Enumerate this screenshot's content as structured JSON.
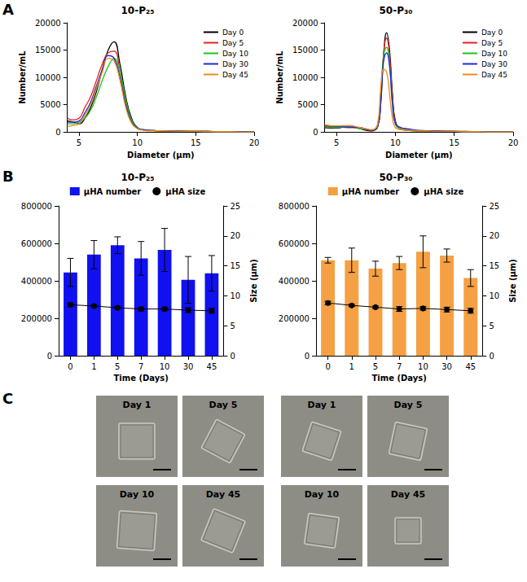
{
  "chart_data": [
    {
      "panel": "A",
      "type": "line",
      "title": "10-P₂₅",
      "x_label": "Diameter (μm)",
      "y_label": "Number/mL",
      "x": [
        4,
        4.5,
        5,
        5.5,
        6,
        6.5,
        7,
        7.5,
        8,
        8.5,
        9,
        9.5,
        10,
        10.5,
        11,
        12,
        13,
        14,
        15,
        16,
        17,
        18,
        19,
        20
      ],
      "xlim": [
        4,
        20
      ],
      "xticks": [
        5,
        10,
        15,
        20
      ],
      "ylim": [
        0,
        20000
      ],
      "yticks": [
        0,
        5000,
        10000,
        15000,
        20000
      ],
      "grid": false,
      "legend": "upper right",
      "line_style": "solid",
      "series": [
        {
          "name": "Day 0",
          "color": "#000000",
          "values": [
            2000,
            1800,
            1500,
            2500,
            4500,
            7500,
            11500,
            15000,
            16500,
            12500,
            6500,
            2500,
            800,
            400,
            300,
            200,
            200,
            150,
            100,
            100,
            50,
            50,
            50,
            0
          ]
        },
        {
          "name": "Day 5",
          "color": "#e8201c",
          "values": [
            2500,
            2200,
            2500,
            4500,
            6500,
            9500,
            12500,
            14500,
            14800,
            11000,
            5500,
            2000,
            700,
            400,
            300,
            200,
            200,
            150,
            100,
            100,
            50,
            50,
            50,
            0
          ]
        },
        {
          "name": "Day 10",
          "color": "#1fc21f",
          "values": [
            1500,
            1500,
            1800,
            2500,
            4000,
            6500,
            9500,
            12000,
            13500,
            11000,
            6000,
            2200,
            800,
            400,
            300,
            200,
            200,
            150,
            100,
            100,
            50,
            50,
            50,
            0
          ]
        },
        {
          "name": "Day 30",
          "color": "#1b2bd6",
          "values": [
            1800,
            1800,
            2000,
            3500,
            5500,
            8500,
            11500,
            14000,
            13500,
            10000,
            5000,
            1800,
            700,
            400,
            300,
            200,
            200,
            150,
            100,
            100,
            50,
            50,
            50,
            0
          ]
        },
        {
          "name": "Day 45",
          "color": "#f08a1c",
          "values": [
            1000,
            1200,
            1500,
            3000,
            5000,
            8000,
            11000,
            13500,
            13000,
            9500,
            4500,
            1600,
            600,
            300,
            200,
            200,
            150,
            100,
            100,
            50,
            50,
            50,
            0,
            0
          ]
        }
      ]
    },
    {
      "panel": "A",
      "type": "line",
      "title": "50-P₃₀",
      "x_label": "Diameter (μm)",
      "y_label": "Number/mL",
      "x": [
        4,
        5,
        6,
        7,
        7.5,
        8,
        8.5,
        8.75,
        9,
        9.25,
        9.5,
        9.75,
        10,
        10.5,
        11,
        12,
        13,
        14,
        15,
        16,
        17,
        18,
        19,
        20
      ],
      "xlim": [
        4,
        20
      ],
      "xticks": [
        5,
        10,
        15,
        20
      ],
      "ylim": [
        0,
        20000
      ],
      "yticks": [
        0,
        5000,
        10000,
        15000,
        20000
      ],
      "grid": false,
      "legend": "upper right",
      "line_style": "solid",
      "series": [
        {
          "name": "Day 0",
          "color": "#000000",
          "values": [
            800,
            700,
            1000,
            600,
            300,
            200,
            1000,
            5000,
            14000,
            18200,
            15000,
            7000,
            2000,
            500,
            300,
            200,
            200,
            150,
            100,
            100,
            50,
            50,
            0,
            0
          ]
        },
        {
          "name": "Day 5",
          "color": "#e8201c",
          "values": [
            1000,
            900,
            800,
            700,
            400,
            300,
            1200,
            6000,
            14500,
            17200,
            14000,
            6500,
            1800,
            600,
            400,
            200,
            150,
            100,
            100,
            50,
            50,
            0,
            0,
            0
          ]
        },
        {
          "name": "Day 10",
          "color": "#1fc21f",
          "values": [
            900,
            800,
            1000,
            600,
            500,
            400,
            1500,
            6500,
            14000,
            15500,
            12500,
            5500,
            1500,
            500,
            300,
            200,
            150,
            100,
            100,
            50,
            50,
            0,
            0,
            0
          ]
        },
        {
          "name": "Day 30",
          "color": "#1b2bd6",
          "values": [
            1200,
            1000,
            900,
            800,
            500,
            300,
            1000,
            5500,
            13000,
            14500,
            12000,
            5000,
            1500,
            800,
            600,
            300,
            200,
            150,
            100,
            50,
            50,
            0,
            0,
            0
          ]
        },
        {
          "name": "Day 45",
          "color": "#f08a1c",
          "values": [
            1300,
            1100,
            1200,
            800,
            600,
            400,
            1500,
            8000,
            11500,
            11000,
            7000,
            2500,
            800,
            400,
            300,
            200,
            150,
            100,
            100,
            50,
            50,
            0,
            0,
            0
          ]
        }
      ]
    },
    {
      "panel": "B",
      "type": "bar",
      "title": "10-P₂₅",
      "x_label": "Time (Days)",
      "y2_label": "Size (μm)",
      "categories": [
        "0",
        "1",
        "5",
        "7",
        "10",
        "30",
        "45"
      ],
      "ylim": [
        0,
        800000
      ],
      "yticks": [
        0,
        200000,
        400000,
        600000,
        800000
      ],
      "y2lim": [
        0,
        25
      ],
      "y2ticks": [
        0,
        5,
        10,
        15,
        20,
        25
      ],
      "grid": false,
      "legend": "top",
      "series": [
        {
          "name": "μHA number",
          "type": "bar",
          "color": "#1010f0",
          "values": [
            445000,
            540000,
            590000,
            520000,
            565000,
            405000,
            440000
          ],
          "errors": [
            75000,
            75000,
            45000,
            90000,
            115000,
            125000,
            95000
          ]
        },
        {
          "name": "μHA size",
          "type": "line",
          "axis": "y2",
          "color": "#000000",
          "marker": "circle",
          "values": [
            8.5,
            8.3,
            8.0,
            7.8,
            7.8,
            7.6,
            7.5
          ],
          "errors": [
            0.3,
            0.2,
            0.2,
            0.3,
            0.3,
            0.4,
            0.4
          ]
        }
      ]
    },
    {
      "panel": "B",
      "type": "bar",
      "title": "50-P₃₀",
      "x_label": "Time (Days)",
      "y2_label": "Size (μm)",
      "categories": [
        "0",
        "1",
        "5",
        "7",
        "10",
        "30",
        "45"
      ],
      "ylim": [
        0,
        800000
      ],
      "yticks": [
        0,
        200000,
        400000,
        600000,
        800000
      ],
      "y2lim": [
        0,
        25
      ],
      "y2ticks": [
        0,
        5,
        10,
        15,
        20,
        25
      ],
      "grid": false,
      "legend": "top",
      "series": [
        {
          "name": "μHA number",
          "type": "bar",
          "color": "#f5a043",
          "values": [
            510000,
            510000,
            465000,
            495000,
            555000,
            535000,
            415000
          ],
          "errors": [
            15000,
            65000,
            40000,
            35000,
            85000,
            35000,
            45000
          ]
        },
        {
          "name": "μHA size",
          "type": "line",
          "axis": "y2",
          "color": "#000000",
          "marker": "circle",
          "values": [
            8.8,
            8.4,
            8.1,
            7.8,
            7.9,
            7.7,
            7.5
          ],
          "errors": [
            0.3,
            0.2,
            0.2,
            0.4,
            0.3,
            0.4,
            0.4
          ]
        }
      ]
    }
  ],
  "micrographs": {
    "panel": "C",
    "groups": [
      [
        "Day 1",
        "Day 5",
        "Day 10",
        "Day 45"
      ],
      [
        "Day 1",
        "Day 5",
        "Day 10",
        "Day 45"
      ]
    ]
  }
}
